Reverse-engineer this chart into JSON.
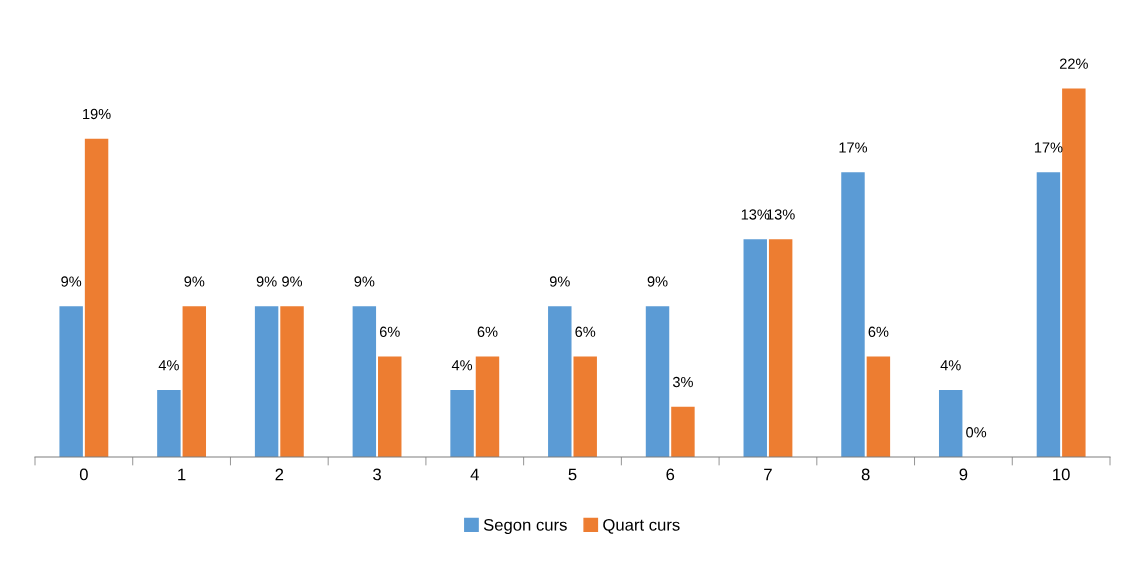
{
  "chart_data": {
    "type": "bar",
    "categories": [
      "0",
      "1",
      "2",
      "3",
      "4",
      "5",
      "6",
      "7",
      "8",
      "9",
      "10"
    ],
    "series": [
      {
        "name": "Segon curs",
        "color": "#5b9bd5",
        "values": [
          9,
          4,
          9,
          9,
          4,
          9,
          9,
          13,
          17,
          4,
          17
        ],
        "value_labels": [
          "9%",
          "4%",
          "9%",
          "9%",
          "4%",
          "9%",
          "9%",
          "13%",
          "17%",
          "4%",
          "17%"
        ]
      },
      {
        "name": "Quart curs",
        "color": "#ed7d31",
        "values": [
          19,
          9,
          9,
          6,
          6,
          6,
          3,
          13,
          6,
          0,
          22
        ],
        "value_labels": [
          "19%",
          "9%",
          "9%",
          "6%",
          "6%",
          "6%",
          "3%",
          "13%",
          "6%",
          "0%",
          "22%"
        ]
      }
    ],
    "tick_labels": "x",
    "legend": "bottom"
  }
}
